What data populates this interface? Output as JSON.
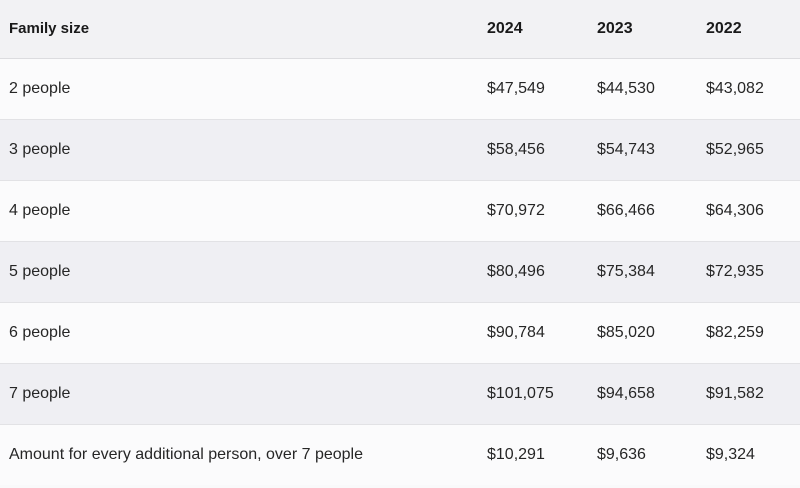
{
  "table": {
    "headers": [
      "Family size",
      "2024",
      "2023",
      "2022"
    ],
    "rows": [
      [
        "2 people",
        "$47,549",
        "$44,530",
        "$43,082"
      ],
      [
        "3 people",
        "$58,456",
        "$54,743",
        "$52,965"
      ],
      [
        "4 people",
        "$70,972",
        "$66,466",
        "$64,306"
      ],
      [
        "5 people",
        "$80,496",
        "$75,384",
        "$72,935"
      ],
      [
        "6 people",
        "$90,784",
        "$85,020",
        "$82,259"
      ],
      [
        "7 people",
        "$101,075",
        "$94,658",
        "$91,582"
      ],
      [
        "Amount for every additional person, over 7 people",
        "$10,291",
        "$9,636",
        "$9,324"
      ]
    ]
  }
}
